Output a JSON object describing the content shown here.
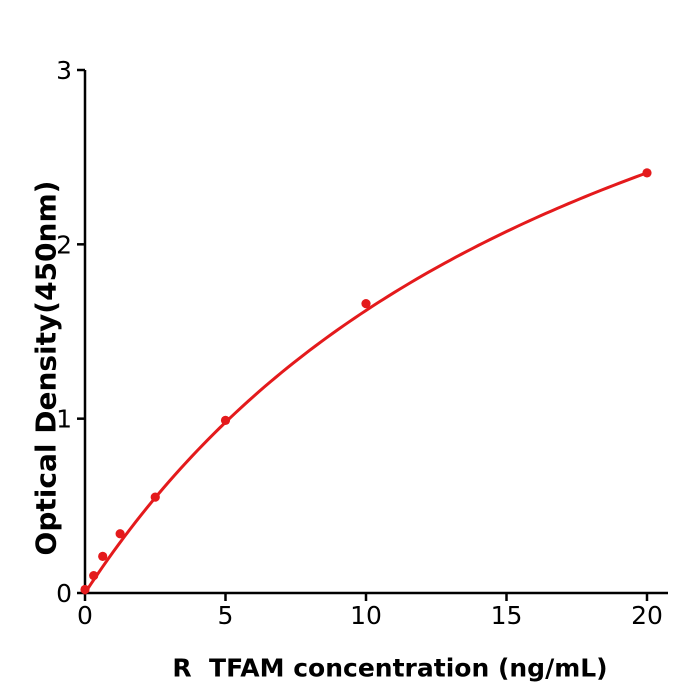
{
  "figure": {
    "background_color": "#ffffff",
    "text_color": "#000000",
    "accent_color": "#e41a1c"
  },
  "chart_data": {
    "type": "scatter",
    "title": "",
    "xlabel": "R  TFAM concentration (ng/mL)",
    "ylabel": "Optical Density(450nm)",
    "xlim": [
      0,
      20.7
    ],
    "ylim": [
      0,
      3
    ],
    "x_ticks": [
      0,
      5,
      10,
      15,
      20
    ],
    "y_ticks": [
      0,
      1,
      2,
      3
    ],
    "grid": false,
    "legend": "none",
    "series": [
      {
        "name": "standard-curve",
        "color": "#e41a1c",
        "marker": "circle",
        "points": [
          {
            "x": 0,
            "y": 0.02
          },
          {
            "x": 0.31,
            "y": 0.1
          },
          {
            "x": 0.63,
            "y": 0.21
          },
          {
            "x": 1.25,
            "y": 0.34
          },
          {
            "x": 2.5,
            "y": 0.55
          },
          {
            "x": 5,
            "y": 0.99
          },
          {
            "x": 10,
            "y": 1.66
          },
          {
            "x": 20,
            "y": 2.41
          }
        ]
      }
    ],
    "fit_curve": {
      "model": "saturation y = vmax*x/(km+x)",
      "vmax": 4.7,
      "km": 19,
      "x_start": 0,
      "x_end": 20
    }
  }
}
